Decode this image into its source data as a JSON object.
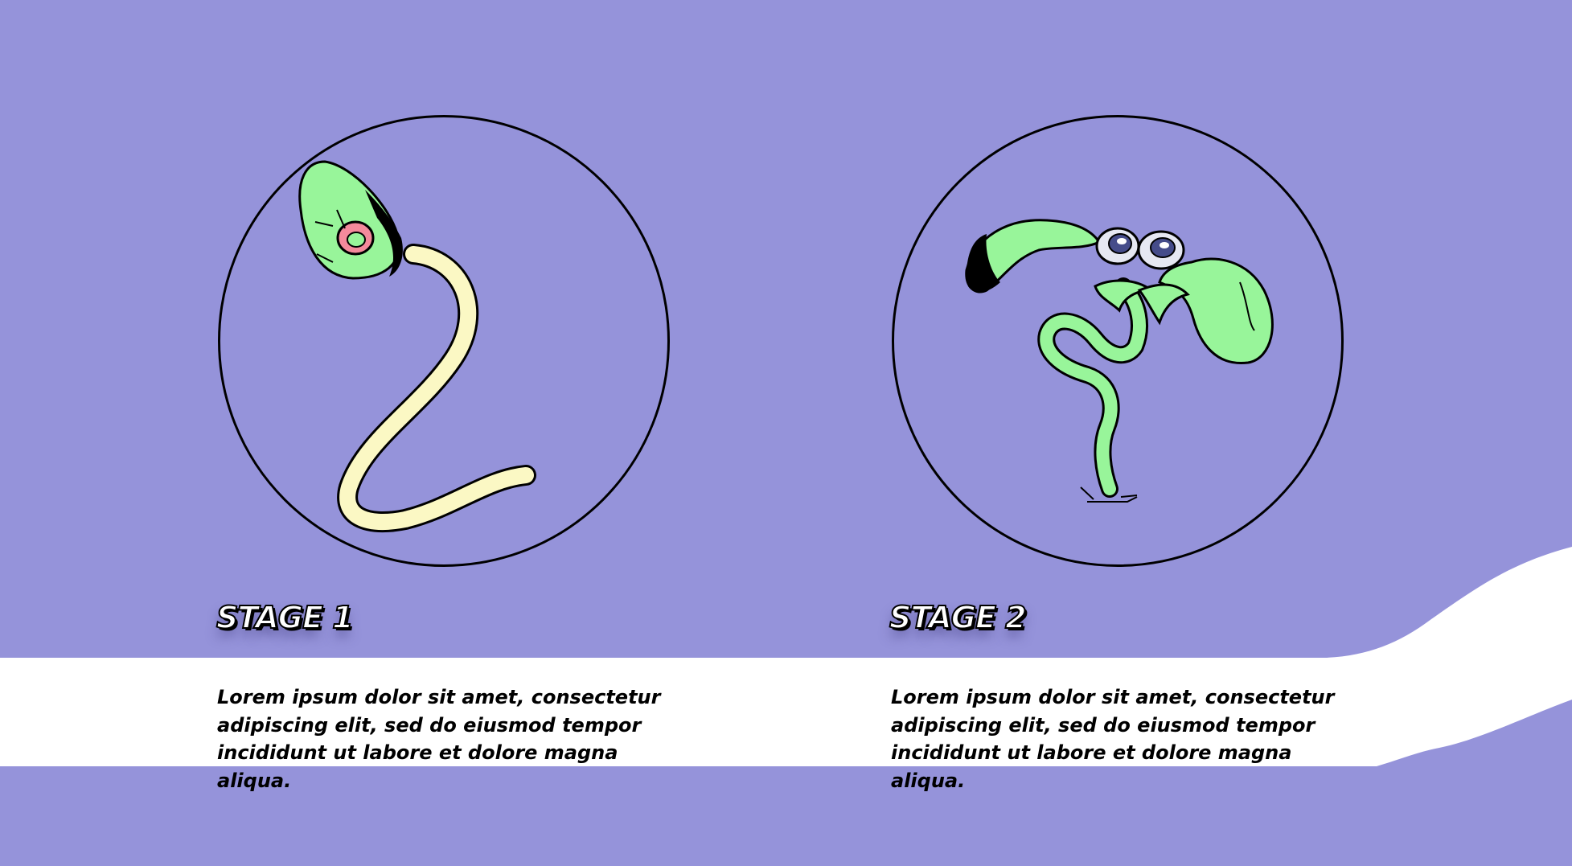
{
  "colors": {
    "background": "#9593da",
    "band": "#ffffff",
    "creature_body": "#98f59a",
    "tail": "#fbf8c4",
    "nucleus": "#f48a9c",
    "outline": "#000000"
  },
  "stages": [
    {
      "title": "STAGE 1",
      "description": "Lorem ipsum dolor sit amet, consectetur adipiscing elit, sed do eiusmod tempor incididunt ut labore et dolore magna aliqua.",
      "illustration": "sperm-like-cell-icon"
    },
    {
      "title": "STAGE 2",
      "description": "Lorem ipsum dolor sit amet, consectetur adipiscing elit, sed do eiusmod tempor incididunt ut labore et dolore magna aliqua.",
      "illustration": "sprout-creature-icon"
    }
  ]
}
